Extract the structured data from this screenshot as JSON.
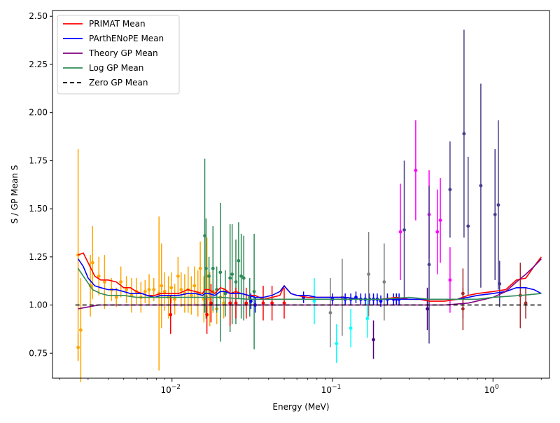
{
  "chart_data": {
    "type": "scatter",
    "xlabel": "Energy (MeV)",
    "ylabel": "S / GP Mean S",
    "xscale": "log",
    "xlim": [
      0.0018,
      2.25
    ],
    "ylim": [
      0.62,
      2.53
    ],
    "legend_position": "upper-left",
    "grid": false,
    "yticks": [
      0.75,
      1.0,
      1.25,
      1.5,
      1.75,
      2.0,
      2.25,
      2.5
    ],
    "ytick_labels": [
      "0.75",
      "1.00",
      "1.25",
      "1.50",
      "1.75",
      "2.00",
      "2.25",
      "2.50"
    ],
    "xticks": [
      {
        "value": 0.01,
        "base": "10",
        "exp": "−2"
      },
      {
        "value": 0.1,
        "base": "10",
        "exp": "−1"
      },
      {
        "value": 1,
        "base": "10",
        "exp": "0"
      }
    ],
    "lines": [
      {
        "name": "PRIMAT Mean",
        "color": "#ff0000",
        "dash": "none",
        "x": [
          0.0026,
          0.0028,
          0.003,
          0.0033,
          0.0036,
          0.004,
          0.0045,
          0.005,
          0.0055,
          0.006,
          0.0065,
          0.007,
          0.0078,
          0.0085,
          0.0095,
          0.011,
          0.0125,
          0.014,
          0.0155,
          0.016,
          0.017,
          0.0185,
          0.02,
          0.0215,
          0.023,
          0.025,
          0.027,
          0.03,
          0.033,
          0.037,
          0.042,
          0.047,
          0.05,
          0.055,
          0.06,
          0.07,
          0.08,
          0.09,
          0.1,
          0.12,
          0.15,
          0.2,
          0.25,
          0.3,
          0.35,
          0.4,
          0.5,
          0.6,
          0.7,
          0.8,
          1.0,
          1.2,
          1.4,
          1.6,
          1.8,
          2.0
        ],
        "y": [
          1.26,
          1.27,
          1.22,
          1.15,
          1.13,
          1.13,
          1.12,
          1.09,
          1.09,
          1.07,
          1.06,
          1.05,
          1.05,
          1.06,
          1.06,
          1.06,
          1.08,
          1.07,
          1.06,
          1.08,
          1.08,
          1.06,
          1.09,
          1.08,
          1.06,
          1.07,
          1.06,
          1.05,
          1.05,
          1.03,
          1.04,
          1.05,
          1.1,
          1.06,
          1.05,
          1.04,
          1.04,
          1.04,
          1.04,
          1.04,
          1.03,
          1.03,
          1.04,
          1.03,
          1.03,
          1.02,
          1.02,
          1.03,
          1.05,
          1.06,
          1.07,
          1.08,
          1.13,
          1.14,
          1.2,
          1.25
        ]
      },
      {
        "name": "PArthENoPE Mean",
        "color": "#0000ff",
        "dash": "none",
        "x": [
          0.0026,
          0.0028,
          0.003,
          0.0033,
          0.0036,
          0.004,
          0.0045,
          0.005,
          0.0055,
          0.006,
          0.0065,
          0.007,
          0.0078,
          0.0085,
          0.0095,
          0.011,
          0.0125,
          0.014,
          0.0155,
          0.016,
          0.017,
          0.0185,
          0.02,
          0.0215,
          0.023,
          0.025,
          0.027,
          0.03,
          0.033,
          0.037,
          0.042,
          0.047,
          0.05,
          0.055,
          0.06,
          0.07,
          0.08,
          0.09,
          0.1,
          0.12,
          0.15,
          0.2,
          0.25,
          0.3,
          0.35,
          0.4,
          0.5,
          0.6,
          0.7,
          0.8,
          1.0,
          1.2,
          1.4,
          1.6,
          1.8,
          2.0
        ],
        "y": [
          1.24,
          1.2,
          1.14,
          1.1,
          1.09,
          1.08,
          1.08,
          1.07,
          1.06,
          1.06,
          1.06,
          1.05,
          1.04,
          1.05,
          1.05,
          1.05,
          1.06,
          1.06,
          1.05,
          1.06,
          1.06,
          1.05,
          1.07,
          1.07,
          1.06,
          1.06,
          1.06,
          1.05,
          1.04,
          1.04,
          1.05,
          1.07,
          1.1,
          1.06,
          1.05,
          1.05,
          1.04,
          1.04,
          1.04,
          1.04,
          1.03,
          1.03,
          1.03,
          1.03,
          1.03,
          1.03,
          1.03,
          1.03,
          1.04,
          1.05,
          1.06,
          1.07,
          1.09,
          1.09,
          1.08,
          1.06
        ]
      },
      {
        "name": "Theory GP Mean",
        "color": "#800080",
        "dash": "none",
        "x": [
          0.0026,
          0.003,
          0.0035,
          0.0045,
          0.006,
          0.01,
          0.02,
          0.05,
          0.1,
          0.2,
          0.3,
          0.5,
          0.7,
          1.0,
          1.2,
          1.4,
          1.6,
          1.8,
          2.0
        ],
        "y": [
          0.98,
          0.99,
          1.0,
          1.0,
          1.0,
          1.0,
          1.0,
          1.0,
          1.0,
          1.0,
          1.0,
          1.0,
          1.01,
          1.04,
          1.07,
          1.12,
          1.16,
          1.2,
          1.24
        ]
      },
      {
        "name": "Log GP Mean",
        "color": "#2e8b57",
        "dash": "none",
        "x": [
          0.0026,
          0.0028,
          0.0032,
          0.0036,
          0.004,
          0.005,
          0.006,
          0.008,
          0.01,
          0.015,
          0.02,
          0.03,
          0.05,
          0.08,
          0.12,
          0.2,
          0.3,
          0.4,
          0.5,
          0.6,
          0.8,
          1.0,
          1.5,
          2.0
        ],
        "y": [
          1.19,
          1.15,
          1.08,
          1.06,
          1.05,
          1.05,
          1.04,
          1.04,
          1.04,
          1.04,
          1.04,
          1.03,
          1.03,
          1.03,
          1.03,
          1.03,
          1.04,
          1.03,
          1.03,
          1.03,
          1.03,
          1.04,
          1.05,
          1.06
        ]
      },
      {
        "name": "Zero GP Mean",
        "color": "#000000",
        "dash": "6,4",
        "x": [
          0.0025,
          2.0
        ],
        "y": [
          1.0,
          1.0
        ]
      }
    ],
    "errorbar_groups": [
      {
        "color": "#ffa500",
        "points": [
          [
            0.0026,
            1.26,
            0.55
          ],
          [
            0.0026,
            0.78,
            0.07
          ],
          [
            0.0027,
            0.87,
            0.27
          ],
          [
            0.0031,
            1.1,
            0.16
          ],
          [
            0.0032,
            1.22,
            0.19
          ],
          [
            0.0035,
            1.15,
            0.1
          ],
          [
            0.0038,
            1.12,
            0.14
          ],
          [
            0.0042,
            1.08,
            0.06
          ],
          [
            0.0045,
            1.04,
            0.05
          ],
          [
            0.0048,
            1.12,
            0.08
          ],
          [
            0.0052,
            1.08,
            0.07
          ],
          [
            0.0056,
            1.05,
            0.09
          ],
          [
            0.006,
            1.07,
            0.07
          ],
          [
            0.0064,
            1.04,
            0.08
          ],
          [
            0.0068,
            1.07,
            0.06
          ],
          [
            0.0072,
            1.08,
            0.08
          ],
          [
            0.0077,
            1.08,
            0.06
          ],
          [
            0.0083,
            1.06,
            0.4
          ],
          [
            0.0086,
            1.1,
            0.22
          ],
          [
            0.009,
            1.07,
            0.1
          ],
          [
            0.0095,
            1.04,
            0.11
          ],
          [
            0.0099,
            1.09,
            0.08
          ],
          [
            0.0104,
            1.03,
            0.08
          ],
          [
            0.0109,
            1.15,
            0.1
          ],
          [
            0.0114,
            1.08,
            0.09
          ],
          [
            0.012,
            1.06,
            0.1
          ],
          [
            0.0126,
            1.08,
            0.12
          ],
          [
            0.0132,
            1.05,
            0.1
          ],
          [
            0.0138,
            1.1,
            0.1
          ],
          [
            0.0145,
            1.06,
            0.12
          ],
          [
            0.015,
            1.19,
            0.14
          ],
          [
            0.0158,
            1.03,
            0.12
          ],
          [
            0.0165,
            1.15,
            0.2
          ],
          [
            0.0172,
            1.03,
            0.14
          ],
          [
            0.018,
            1.07,
            0.11
          ],
          [
            0.019,
            0.98,
            0.08
          ],
          [
            0.02,
            1.04,
            0.1
          ],
          [
            0.021,
            1.01,
            0.08
          ]
        ]
      },
      {
        "color": "#2e8b57",
        "points": [
          [
            0.016,
            1.36,
            0.4
          ],
          [
            0.0163,
            1.19,
            0.26
          ],
          [
            0.017,
            1.15,
            0.1
          ],
          [
            0.018,
            1.19,
            0.22
          ],
          [
            0.019,
            1.08,
            0.12
          ],
          [
            0.02,
            1.17,
            0.36
          ],
          [
            0.0215,
            1.06,
            0.12
          ],
          [
            0.023,
            1.14,
            0.28
          ],
          [
            0.0237,
            1.16,
            0.26
          ],
          [
            0.025,
            1.12,
            0.22
          ],
          [
            0.026,
            1.23,
            0.2
          ],
          [
            0.027,
            1.15,
            0.22
          ],
          [
            0.028,
            1.14,
            0.22
          ],
          [
            0.0305,
            1.04,
            0.1
          ],
          [
            0.0325,
            1.07,
            0.3
          ]
        ]
      },
      {
        "color": "#ff0000",
        "points": [
          [
            0.0098,
            0.95,
            0.1
          ],
          [
            0.0165,
            0.95,
            0.1
          ],
          [
            0.0175,
            1.01,
            0.1
          ],
          [
            0.023,
            1.01,
            0.12
          ],
          [
            0.025,
            1.01,
            0.08
          ],
          [
            0.029,
            1.01,
            0.08
          ],
          [
            0.037,
            1.01,
            0.09
          ],
          [
            0.042,
            1.01,
            0.09
          ],
          [
            0.05,
            1.01,
            0.08
          ]
        ]
      },
      {
        "color": "#0000ff",
        "points": [
          [
            0.031,
            1.02,
            0.04
          ],
          [
            0.033,
            1.0,
            0.04
          ],
          [
            0.066,
            1.04,
            0.03
          ],
          [
            0.1,
            1.03,
            0.03
          ],
          [
            0.12,
            1.03,
            0.03
          ],
          [
            0.13,
            1.03,
            0.03
          ],
          [
            0.14,
            1.04,
            0.03
          ],
          [
            0.15,
            1.03,
            0.03
          ],
          [
            0.16,
            1.03,
            0.03
          ],
          [
            0.17,
            1.03,
            0.03
          ],
          [
            0.18,
            1.03,
            0.03
          ],
          [
            0.19,
            1.03,
            0.03
          ],
          [
            0.2,
            1.02,
            0.03
          ],
          [
            0.22,
            1.03,
            0.03
          ],
          [
            0.24,
            1.03,
            0.03
          ],
          [
            0.25,
            1.03,
            0.03
          ],
          [
            0.26,
            1.03,
            0.03
          ]
        ]
      },
      {
        "color": "#00ffff",
        "points": [
          [
            0.077,
            1.02,
            0.12
          ],
          [
            0.106,
            0.8,
            0.1
          ],
          [
            0.13,
            0.88,
            0.1
          ],
          [
            0.165,
            0.93,
            0.1
          ]
        ]
      },
      {
        "color": "#808080",
        "points": [
          [
            0.097,
            0.96,
            0.18
          ],
          [
            0.115,
            1.04,
            0.2
          ],
          [
            0.168,
            1.16,
            0.22
          ],
          [
            0.21,
            1.12,
            0.2
          ]
        ]
      },
      {
        "color": "#ff00ff",
        "points": [
          [
            0.265,
            1.38,
            0.25
          ],
          [
            0.33,
            1.7,
            0.26
          ],
          [
            0.4,
            1.47,
            0.23
          ],
          [
            0.45,
            1.38,
            0.22
          ],
          [
            0.47,
            1.44,
            0.22
          ],
          [
            0.54,
            1.13,
            0.17
          ]
        ]
      },
      {
        "color": "#483d8b",
        "points": [
          [
            0.28,
            1.39,
            0.36
          ],
          [
            0.4,
            1.21,
            0.41
          ],
          [
            0.54,
            1.6,
            0.25
          ],
          [
            0.66,
            1.89,
            0.54
          ],
          [
            0.7,
            1.41,
            0.36
          ],
          [
            0.84,
            1.62,
            0.53
          ],
          [
            1.03,
            1.47,
            0.34
          ],
          [
            1.08,
            1.52,
            0.44
          ],
          [
            1.1,
            1.11,
            0.12
          ]
        ]
      },
      {
        "color": "#4b0082",
        "points": [
          [
            0.18,
            0.82,
            0.1
          ],
          [
            0.39,
            0.98,
            0.11
          ]
        ]
      },
      {
        "color": "#a52a2a",
        "points": [
          [
            0.65,
            1.06,
            0.13
          ],
          [
            0.65,
            0.98,
            0.11
          ],
          [
            1.48,
            1.05,
            0.17
          ],
          [
            1.6,
            1.01,
            0.08
          ]
        ]
      }
    ]
  }
}
